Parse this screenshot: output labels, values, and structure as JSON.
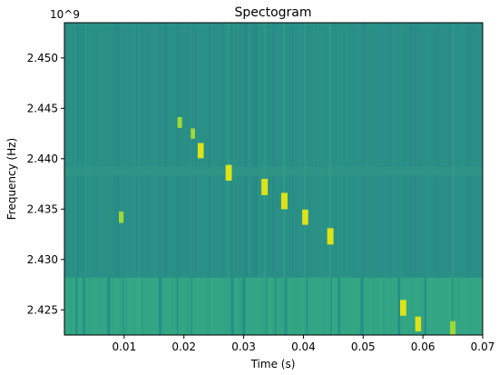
{
  "chart_data": {
    "type": "heatmap",
    "title": "Spectogram",
    "xlabel": "Time (s)",
    "ylabel": "Frequency (Hz)",
    "y_offset_text": "10^9",
    "xlim": [
      0.0,
      0.07
    ],
    "ylim": [
      2.4225,
      2.4535
    ],
    "x_ticks": [
      0.01,
      0.02,
      0.03,
      0.04,
      0.05,
      0.06,
      0.07
    ],
    "x_tick_labels": [
      "0.01",
      "0.02",
      "0.03",
      "0.04",
      "0.05",
      "0.06",
      "0.07"
    ],
    "y_ticks": [
      2.425,
      2.43,
      2.435,
      2.44,
      2.445,
      2.45
    ],
    "y_tick_labels": [
      "2.425",
      "2.430",
      "2.435",
      "2.440",
      "2.445",
      "2.450"
    ],
    "colormap": "viridis",
    "colors": {
      "background": "#2a8f86",
      "low_band": "#33a584",
      "horizontal_band": "#2f9686",
      "hotspot": "#dde318",
      "hotspot_mid": "#9ed93a"
    },
    "bright_spots": [
      {
        "t": 0.0095,
        "f": 2.4342,
        "intensity": 0.55
      },
      {
        "t": 0.0193,
        "f": 2.4436,
        "intensity": 0.5
      },
      {
        "t": 0.0215,
        "f": 2.4425,
        "intensity": 0.45
      },
      {
        "t": 0.0228,
        "f": 2.4408,
        "intensity": 0.9
      },
      {
        "t": 0.0275,
        "f": 2.4386,
        "intensity": 0.95
      },
      {
        "t": 0.0335,
        "f": 2.4372,
        "intensity": 1.0
      },
      {
        "t": 0.0368,
        "f": 2.4358,
        "intensity": 1.0
      },
      {
        "t": 0.0403,
        "f": 2.4342,
        "intensity": 0.9
      },
      {
        "t": 0.0445,
        "f": 2.4323,
        "intensity": 1.0
      },
      {
        "t": 0.0567,
        "f": 2.4252,
        "intensity": 0.95
      },
      {
        "t": 0.0592,
        "f": 2.4236,
        "intensity": 0.85
      },
      {
        "t": 0.065,
        "f": 2.4232,
        "intensity": 0.75
      }
    ]
  }
}
